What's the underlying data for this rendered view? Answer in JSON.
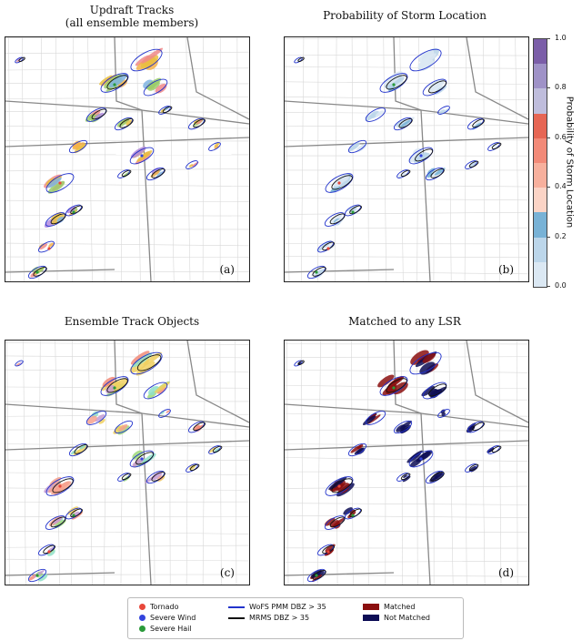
{
  "panels": [
    {
      "title": "Updraft Tracks\n(all ensemble members)",
      "label": "(a)",
      "kind": "updraft"
    },
    {
      "title": "Probability of Storm Location",
      "label": "(b)",
      "kind": "prob"
    },
    {
      "title": "Ensemble Track Objects",
      "label": "(c)",
      "kind": "objects"
    },
    {
      "title": "Matched to any LSR",
      "label": "(d)",
      "kind": "matched"
    }
  ],
  "colorbar": {
    "label": "Probability of Storm Location",
    "ticks": [
      "0.0",
      "0.2",
      "0.4",
      "0.6",
      "0.8",
      "1.0"
    ],
    "colors": [
      "#dbe8f3",
      "#bcd6ea",
      "#78b2d6",
      "#fbd4c6",
      "#f7b09d",
      "#f28a78",
      "#e66654",
      "#bfbddc",
      "#9f92c7",
      "#7b5ea8"
    ]
  },
  "legend": {
    "tornado": "Tornado",
    "severe_wind": "Severe Wind",
    "severe_hail": "Severe Hail",
    "wofs": "WoFS PMM DBZ > 35",
    "mrms": "MRMS DBZ > 35",
    "matched": "Matched",
    "not_matched": "Not Matched"
  },
  "colors": {
    "tornado": "#e8473a",
    "severe_wind": "#3344dd",
    "severe_hail": "#2a9a3a",
    "wofs": "#2233cc",
    "mrms": "#111111",
    "matched": "#8b0f0f",
    "not_matched": "#0d0d55"
  }
}
